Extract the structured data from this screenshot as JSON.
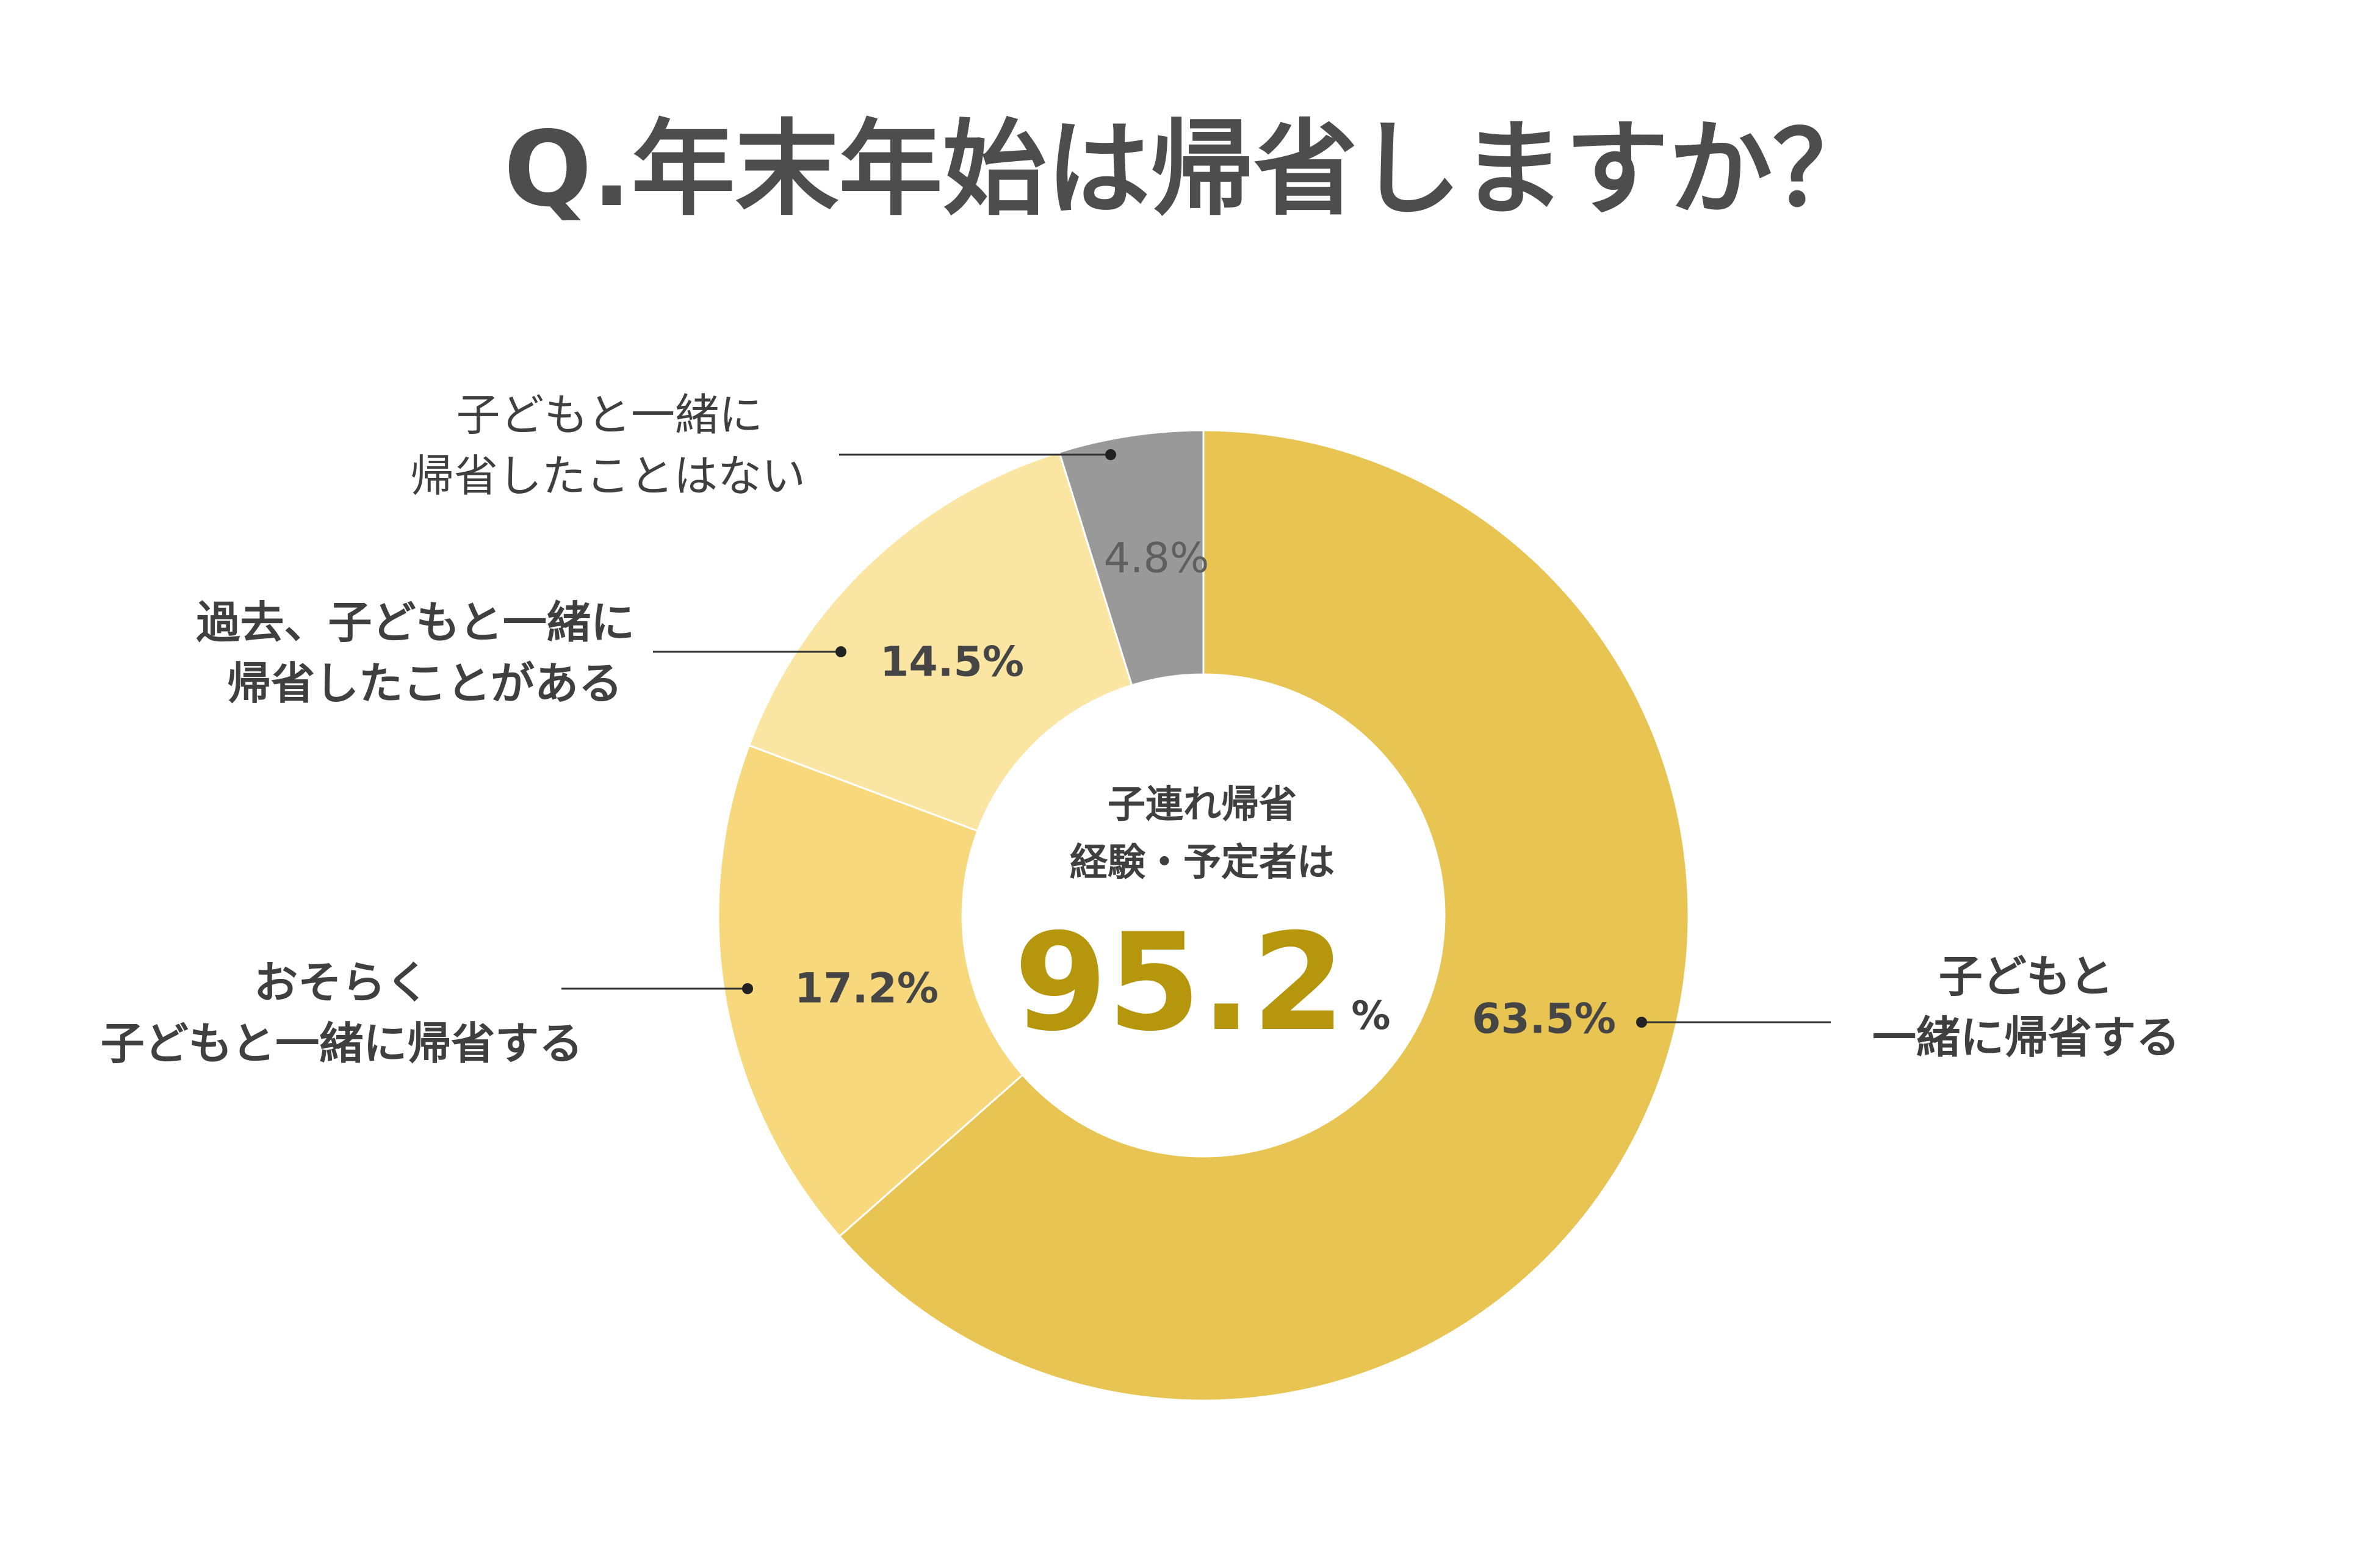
{
  "title": "Q.年末年始は帰省しますか？",
  "chart_data": {
    "type": "pie",
    "categories": [
      "子どもと一緒に帰省する",
      "おそらく子どもと一緒に帰省する",
      "過去、子どもと一緒に帰省したことがある",
      "子どもと一緒に帰省したことはない"
    ],
    "values": [
      63.5,
      17.2,
      14.5,
      4.8
    ],
    "value_labels": [
      "63.5%",
      "17.2%",
      "14.5%",
      "4.8%"
    ],
    "colors": [
      "#e8c453",
      "#f7d87c",
      "#fae6a2",
      "#999999"
    ],
    "callouts": [
      [
        "子どもと",
        "一緒に帰省する"
      ],
      [
        "おそらく",
        "子どもと一緒に帰省する"
      ],
      [
        "過去、子どもと一緒に",
        "帰省したことがある"
      ],
      [
        "子どもと一緒に",
        "帰省したことはない"
      ]
    ],
    "center": {
      "label_lines": [
        "子連れ帰省",
        "経験・予定者は"
      ],
      "value": "95.2",
      "unit": "%"
    }
  }
}
